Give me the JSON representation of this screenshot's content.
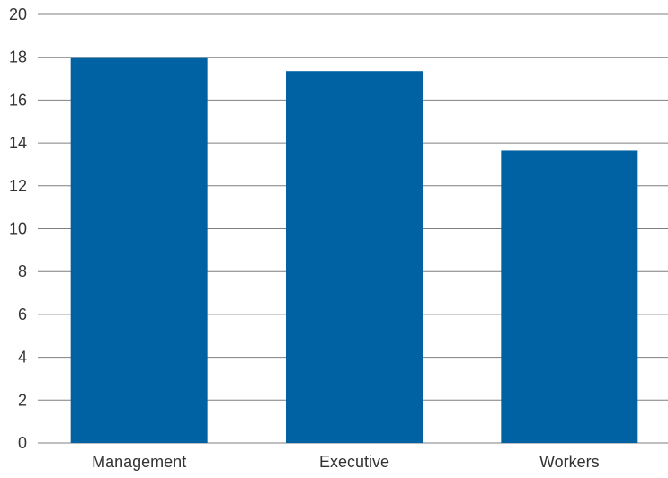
{
  "chart_data": {
    "type": "bar",
    "title": "",
    "xlabel": "",
    "ylabel": "",
    "categories": [
      "Management",
      "Executive",
      "Workers"
    ],
    "values": [
      18.0,
      17.35,
      13.65
    ],
    "ylim": [
      0,
      20
    ],
    "yticks": [
      "0",
      "2",
      "4",
      "6",
      "8",
      "10",
      "12",
      "14",
      "16",
      "18",
      "20"
    ],
    "grid": true,
    "legend": "none"
  },
  "colors": {
    "bar": "#0062A3",
    "grid": "#7f7f7f",
    "text": "#333333"
  }
}
